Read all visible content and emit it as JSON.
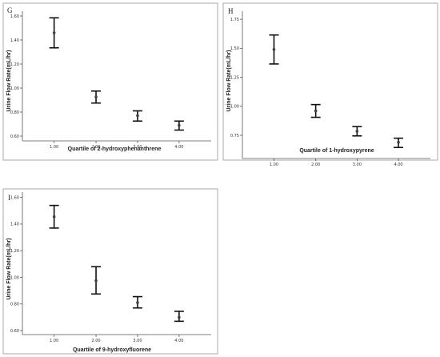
{
  "chart_data": [
    {
      "type": "errorbar",
      "panel_label": "G",
      "xlabel": "Quartile of 2-hydroxyphenanthrene",
      "ylabel": "Urine Flow Rate(mL/hr)",
      "x_tick_labels": [
        "1.00",
        "2.00",
        "3.00",
        "4.00"
      ],
      "y_tick_labels": [
        "0.60",
        "0.80",
        "1.00",
        "1.20",
        "1.40",
        "1.60"
      ],
      "ylim": [
        0.56,
        1.64
      ],
      "series": [
        {
          "x": [
            "1.00",
            "2.00",
            "3.00",
            "4.00"
          ],
          "mean": [
            1.46,
            0.925,
            0.77,
            0.69
          ],
          "lower": [
            1.335,
            0.875,
            0.725,
            0.65
          ],
          "upper": [
            1.585,
            0.975,
            0.81,
            0.725
          ]
        }
      ]
    },
    {
      "type": "errorbar",
      "panel_label": "H",
      "xlabel": "Quartile of 1-hydroxypyrene",
      "ylabel": "Urine Flow Rate(mL/hr)",
      "x_tick_labels": [
        "1.00",
        "2.00",
        "3.00",
        "4.00"
      ],
      "y_tick_labels": [
        "0.75",
        "1.00",
        "1.25",
        "1.50",
        "1.75"
      ],
      "ylim": [
        0.55,
        1.82
      ],
      "series": [
        {
          "x": [
            "1.00",
            "2.00",
            "3.00",
            "4.00"
          ],
          "mean": [
            1.49,
            0.96,
            0.785,
            0.69
          ],
          "lower": [
            1.365,
            0.905,
            0.745,
            0.645
          ],
          "upper": [
            1.615,
            1.015,
            0.825,
            0.725
          ]
        }
      ]
    },
    {
      "type": "errorbar",
      "panel_label": "I",
      "xlabel": "Quartile of 9-hydroxyfluorene",
      "ylabel": "Urine Flow Rate(mL/hr)",
      "x_tick_labels": [
        "1.00",
        "2.00",
        "3.00",
        "4.00"
      ],
      "y_tick_labels": [
        "0.60",
        "0.80",
        "1.00",
        "1.20",
        "1.40",
        "1.60"
      ],
      "ylim": [
        0.57,
        1.64
      ],
      "series": [
        {
          "x": [
            "1.00",
            "2.00",
            "3.00",
            "4.00"
          ],
          "mean": [
            1.455,
            0.975,
            0.81,
            0.7
          ],
          "lower": [
            1.37,
            0.875,
            0.77,
            0.67
          ],
          "upper": [
            1.54,
            1.08,
            0.855,
            0.745
          ]
        }
      ]
    }
  ]
}
